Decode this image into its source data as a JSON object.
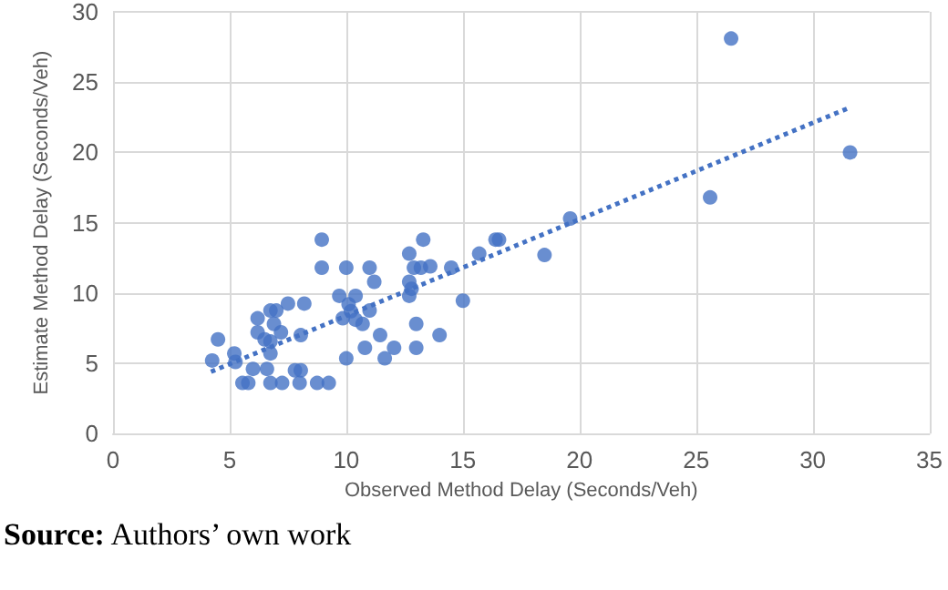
{
  "chart_data": {
    "type": "scatter",
    "xlabel": "Observed Method Delay (Seconds/Veh)",
    "ylabel": "Estimate Method Delay (Seconds/Veh)",
    "annotations": [
      "Source: Authors’ own work"
    ],
    "xlim": [
      0,
      35
    ],
    "xticks": [
      0,
      5,
      10,
      15,
      20,
      25,
      30,
      35
    ],
    "ylim": [
      0,
      30
    ],
    "yticks": [
      0,
      5,
      10,
      15,
      20,
      25,
      30
    ],
    "grid": true,
    "marker": "circle",
    "series": [
      {
        "color": "#4472c4",
        "x": [
          26.5,
          31.6,
          25.6,
          19.6,
          18.5,
          8.95,
          8.95,
          10.0,
          11.0,
          11.2,
          9.7,
          10.4,
          10.1,
          11.0,
          9.85,
          10.4,
          10.7,
          10.2,
          7.5,
          8.2,
          6.75,
          7.0,
          6.2,
          6.9,
          7.2,
          6.2,
          6.5,
          6.75,
          8.05,
          6.75,
          4.5,
          4.25,
          5.2,
          5.25,
          6.0,
          6.6,
          7.8,
          8.05,
          5.55,
          5.8,
          6.75,
          7.25,
          8.0,
          8.75,
          9.25,
          10.0,
          10.8,
          11.45,
          11.65,
          12.05,
          13.3,
          12.7,
          12.9,
          13.2,
          13.6,
          14.5,
          12.7,
          12.8,
          12.7,
          15.7,
          16.4,
          16.55,
          15.0,
          13.0,
          14.0,
          13.0
        ],
        "values": [
          28.1,
          20.0,
          16.8,
          15.3,
          12.7,
          13.8,
          11.8,
          11.8,
          11.8,
          10.8,
          9.8,
          9.8,
          9.2,
          8.75,
          8.2,
          8.1,
          7.8,
          8.7,
          9.25,
          9.25,
          8.75,
          8.75,
          8.2,
          7.8,
          7.2,
          7.2,
          6.7,
          6.55,
          7.0,
          5.7,
          6.7,
          5.2,
          5.7,
          5.1,
          4.6,
          4.6,
          4.5,
          4.5,
          3.6,
          3.6,
          3.6,
          3.6,
          3.6,
          3.6,
          3.6,
          5.35,
          6.1,
          7.0,
          5.35,
          6.1,
          13.8,
          12.8,
          11.8,
          11.8,
          11.9,
          11.8,
          10.8,
          10.3,
          9.8,
          12.8,
          13.8,
          13.8,
          9.45,
          7.8,
          7.0,
          6.1
        ]
      },
      {
        "type": "line",
        "color": "#4472c4",
        "line_style": "dotted",
        "marker": "none",
        "x": [
          4.2,
          31.6
        ],
        "values": [
          4.4,
          23.2
        ]
      }
    ]
  }
}
